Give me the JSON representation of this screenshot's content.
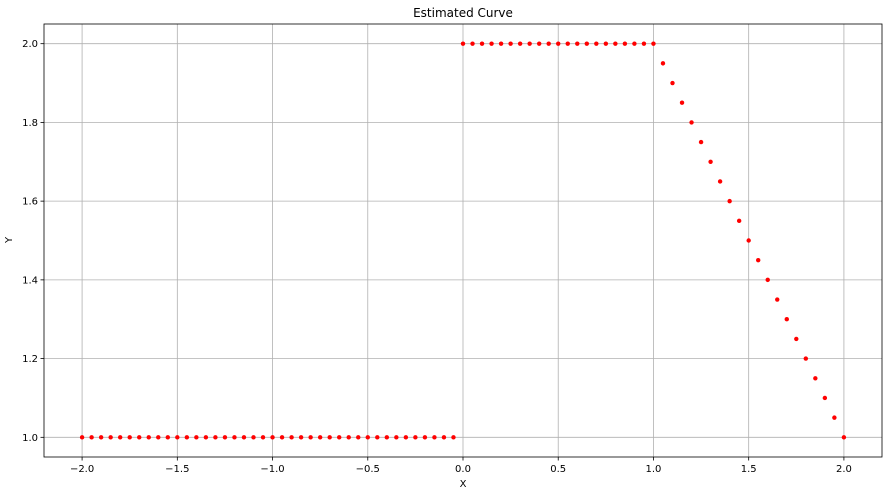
{
  "chart_data": {
    "type": "scatter",
    "title": "Estimated Curve",
    "xlabel": "X",
    "ylabel": "Y",
    "xlim": [
      -2.2,
      2.2
    ],
    "ylim": [
      0.95,
      2.05
    ],
    "x_ticks": [
      -2.0,
      -1.5,
      -1.0,
      -0.5,
      0.0,
      0.5,
      1.0,
      1.5,
      2.0
    ],
    "x_tick_labels": [
      "−2.0",
      "−1.5",
      "−1.0",
      "−0.5",
      "0.0",
      "0.5",
      "1.0",
      "1.5",
      "2.0"
    ],
    "y_ticks": [
      1.0,
      1.2,
      1.4,
      1.6,
      1.8,
      2.0
    ],
    "y_tick_labels": [
      "1.0",
      "1.2",
      "1.4",
      "1.6",
      "1.8",
      "2.0"
    ],
    "grid": true,
    "marker_color": "#ff0000",
    "series": [
      {
        "x": [
          -2.0,
          -1.95,
          -1.9,
          -1.85,
          -1.8,
          -1.75,
          -1.7,
          -1.65,
          -1.6,
          -1.55,
          -1.5,
          -1.45,
          -1.4,
          -1.35,
          -1.3,
          -1.25,
          -1.2,
          -1.15,
          -1.1,
          -1.05,
          -1.0,
          -0.95,
          -0.9,
          -0.85,
          -0.8,
          -0.75,
          -0.7,
          -0.65,
          -0.6,
          -0.55,
          -0.5,
          -0.45,
          -0.4,
          -0.35,
          -0.3,
          -0.25,
          -0.2,
          -0.15,
          -0.1,
          -0.05,
          0.0,
          0.05,
          0.1,
          0.15,
          0.2,
          0.25,
          0.3,
          0.35,
          0.4,
          0.45,
          0.5,
          0.55,
          0.6,
          0.65,
          0.7,
          0.75,
          0.8,
          0.85,
          0.9,
          0.95,
          1.0,
          1.05,
          1.1,
          1.15,
          1.2,
          1.25,
          1.3,
          1.35,
          1.4,
          1.45,
          1.5,
          1.55,
          1.6,
          1.65,
          1.7,
          1.75,
          1.8,
          1.85,
          1.9,
          1.95,
          2.0
        ],
        "y": [
          1.0,
          1.0,
          1.0,
          1.0,
          1.0,
          1.0,
          1.0,
          1.0,
          1.0,
          1.0,
          1.0,
          1.0,
          1.0,
          1.0,
          1.0,
          1.0,
          1.0,
          1.0,
          1.0,
          1.0,
          1.0,
          1.0,
          1.0,
          1.0,
          1.0,
          1.0,
          1.0,
          1.0,
          1.0,
          1.0,
          1.0,
          1.0,
          1.0,
          1.0,
          1.0,
          1.0,
          1.0,
          1.0,
          1.0,
          1.0,
          2.0,
          2.0,
          2.0,
          2.0,
          2.0,
          2.0,
          2.0,
          2.0,
          2.0,
          2.0,
          2.0,
          2.0,
          2.0,
          2.0,
          2.0,
          2.0,
          2.0,
          2.0,
          2.0,
          2.0,
          2.0,
          1.95,
          1.9,
          1.85,
          1.8,
          1.75,
          1.7,
          1.65,
          1.6,
          1.55,
          1.5,
          1.45,
          1.4,
          1.35,
          1.3,
          1.25,
          1.2,
          1.15,
          1.1,
          1.05,
          1.0
        ]
      }
    ]
  }
}
